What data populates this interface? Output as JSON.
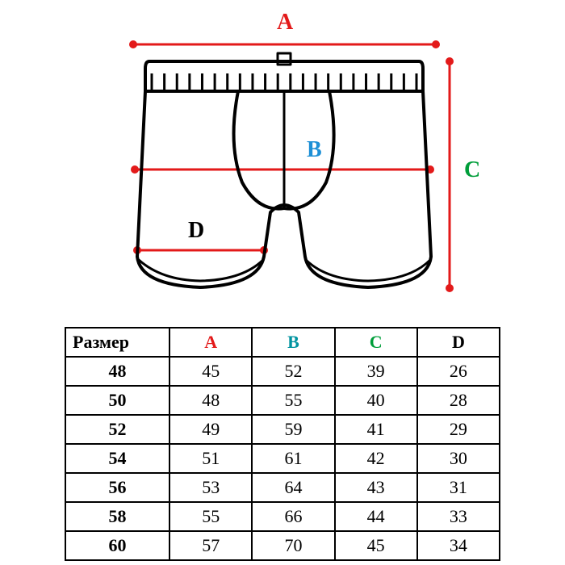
{
  "diagram": {
    "labels": {
      "A": {
        "text": "A",
        "color": "#e31a1a"
      },
      "B": {
        "text": "B",
        "color": "#1e90d6"
      },
      "C": {
        "text": "C",
        "color": "#009e3a"
      },
      "D": {
        "text": "D",
        "color": "#000000"
      }
    },
    "arrow_color": "#e31a1a",
    "outline_color": "#000000",
    "outline_width": 4,
    "arrow_width": 3,
    "dot_radius": 5,
    "background": "#ffffff",
    "waistband_ribbing_color": "#000000",
    "waistband_ribbing_count": 22
  },
  "table": {
    "columns": [
      {
        "label": "Размер",
        "color": "#000000"
      },
      {
        "label": "A",
        "color": "#e31a1a"
      },
      {
        "label": "B",
        "color": "#0093a0"
      },
      {
        "label": "C",
        "color": "#009e3a"
      },
      {
        "label": "D",
        "color": "#000000"
      }
    ],
    "rows": [
      [
        "48",
        "45",
        "52",
        "39",
        "26"
      ],
      [
        "50",
        "48",
        "55",
        "40",
        "28"
      ],
      [
        "52",
        "49",
        "59",
        "41",
        "29"
      ],
      [
        "54",
        "51",
        "61",
        "42",
        "30"
      ],
      [
        "56",
        "53",
        "64",
        "43",
        "31"
      ],
      [
        "58",
        "55",
        "66",
        "44",
        "33"
      ],
      [
        "60",
        "57",
        "70",
        "45",
        "34"
      ]
    ],
    "border_color": "#000000",
    "font_size": 22
  }
}
